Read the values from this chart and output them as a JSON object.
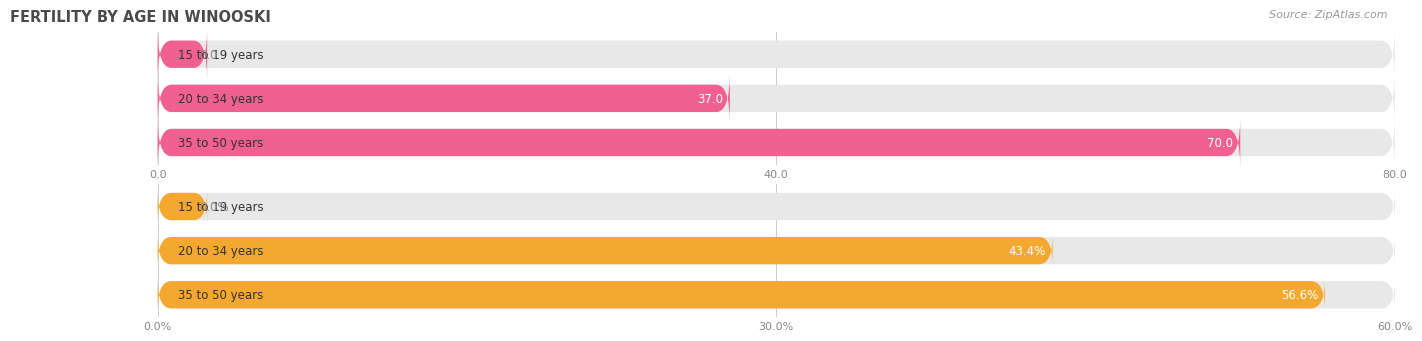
{
  "title": "FERTILITY BY AGE IN WINOOSKI",
  "source": "Source: ZipAtlas.com",
  "chart1": {
    "categories": [
      "15 to 19 years",
      "20 to 34 years",
      "35 to 50 years"
    ],
    "values": [
      0.0,
      37.0,
      70.0
    ],
    "xlim": [
      0,
      80
    ],
    "xticks": [
      0.0,
      40.0,
      80.0
    ],
    "xtick_labels": [
      "0.0",
      "40.0",
      "80.0"
    ],
    "bar_color": "#F06090",
    "bar_bg_color": "#E8E8E8"
  },
  "chart2": {
    "categories": [
      "15 to 19 years",
      "20 to 34 years",
      "35 to 50 years"
    ],
    "values": [
      0.0,
      43.4,
      56.6
    ],
    "xlim": [
      0,
      60
    ],
    "xticks": [
      0.0,
      30.0,
      60.0
    ],
    "xtick_labels": [
      "0.0%",
      "30.0%",
      "60.0%"
    ],
    "bar_color": "#F5A830",
    "bar_bg_color": "#E8E8E8"
  },
  "category_label_color": "#555555",
  "category_label_fontsize": 8.5,
  "value_label_fontsize": 8.5,
  "tick_fontsize": 8,
  "bar_height": 0.62,
  "background_color": "#FFFFFF"
}
